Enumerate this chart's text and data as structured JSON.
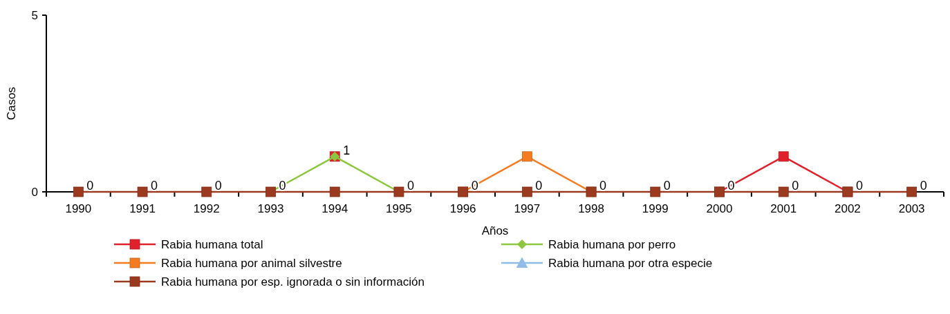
{
  "chart_data": {
    "type": "line",
    "xlabel": "Años",
    "ylabel": "Casos",
    "categories": [
      "1990",
      "1991",
      "1992",
      "1993",
      "1994",
      "1995",
      "1996",
      "1997",
      "1998",
      "1999",
      "2000",
      "2001",
      "2002",
      "2003"
    ],
    "ylim": [
      0,
      5
    ],
    "yticks": [
      0,
      5
    ],
    "grid": false,
    "legend": "bottom",
    "series": [
      {
        "name": "Rabia humana total",
        "color": "#e0202a",
        "marker": "square",
        "values": [
          null,
          null,
          null,
          null,
          1,
          null,
          null,
          null,
          null,
          null,
          0,
          1,
          0,
          null
        ]
      },
      {
        "name": "Rabia humana por perro",
        "color": "#8dc63f",
        "marker": "diamond",
        "values": [
          null,
          null,
          null,
          0,
          1,
          0,
          null,
          null,
          null,
          null,
          null,
          null,
          null,
          null
        ]
      },
      {
        "name": "Rabia humana por animal silvestre",
        "color": "#f47b20",
        "marker": "square",
        "values": [
          null,
          null,
          null,
          null,
          null,
          null,
          0,
          1,
          0,
          null,
          null,
          null,
          null,
          null
        ]
      },
      {
        "name": "Rabia humana por otra especie",
        "color": "#8fbde8",
        "marker": "triangle",
        "values": [
          null,
          null,
          null,
          null,
          null,
          null,
          null,
          null,
          null,
          null,
          null,
          null,
          null,
          null
        ]
      },
      {
        "name": "Rabia humana por esp. ignorada o sin información",
        "color": "#9b3a1e",
        "marker": "square",
        "values": [
          0,
          0,
          0,
          0,
          0,
          0,
          0,
          0,
          0,
          0,
          0,
          0,
          0,
          0
        ]
      }
    ],
    "annotations": [
      {
        "text": "0",
        "x": "1990",
        "y": 0
      },
      {
        "text": "0",
        "x": "1991",
        "y": 0
      },
      {
        "text": "0",
        "x": "1992",
        "y": 0
      },
      {
        "text": "0",
        "x": "1993",
        "y": 0
      },
      {
        "text": "1",
        "x": "1994",
        "y": 1
      },
      {
        "text": "0",
        "x": "1995",
        "y": 0
      },
      {
        "text": "0",
        "x": "1996",
        "y": 0
      },
      {
        "text": "0",
        "x": "1997",
        "y": 0
      },
      {
        "text": "0",
        "x": "1998",
        "y": 0
      },
      {
        "text": "0",
        "x": "1999",
        "y": 0
      },
      {
        "text": "0",
        "x": "2000",
        "y": 0
      },
      {
        "text": "0",
        "x": "2001",
        "y": 0
      },
      {
        "text": "0",
        "x": "2002",
        "y": 0
      },
      {
        "text": "0",
        "x": "2003",
        "y": 0
      }
    ]
  }
}
